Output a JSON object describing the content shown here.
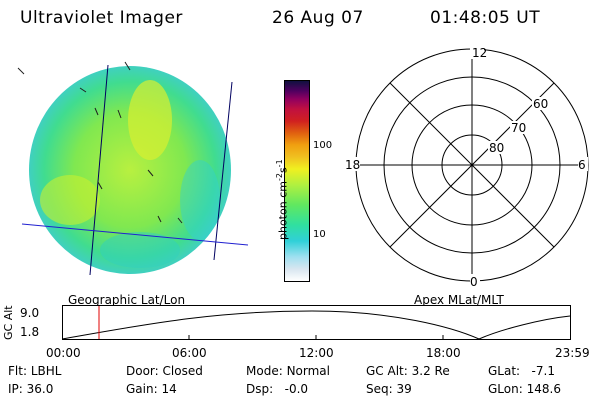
{
  "header": {
    "instrument": "Ultraviolet Imager",
    "date": "26 Aug 07",
    "time": "01:48:05 UT"
  },
  "colorbar": {
    "unit_label": "photon cm",
    "unit_exp1": "-2",
    "unit_mid": "s",
    "unit_exp2": "-1",
    "ticks": [
      "100",
      "10"
    ],
    "colors": [
      "#ffffff",
      "#d8e6f0",
      "#a0e0f0",
      "#30d0d8",
      "#30e0a0",
      "#60e860",
      "#b0f040",
      "#f0f020",
      "#f0c020",
      "#f0a010",
      "#e06010",
      "#d02020",
      "#c01040",
      "#900060",
      "#500060",
      "#101040"
    ]
  },
  "polar_grid": {
    "mlt_labels": {
      "top": "12",
      "right": "6",
      "bottom": "0",
      "left": "18"
    },
    "lat_labels": [
      "60",
      "70",
      "80"
    ]
  },
  "labels": {
    "left_panel": "Geographic Lat/Lon",
    "right_panel": "Apex MLat/MLT"
  },
  "altitude_plot": {
    "ylabel": "GC Alt",
    "yticks": [
      "9.0",
      "1.8"
    ],
    "xticks": [
      "00:00",
      "06:00",
      "12:00",
      "18:00",
      "23:59"
    ],
    "marker_color": "#e00000"
  },
  "info": {
    "flt_label": "Flt:",
    "flt_value": "LBHL",
    "door_label": "Door:",
    "door_value": "Closed",
    "mode_label": "Mode:",
    "mode_value": "Normal",
    "gcalt_label": "GC Alt:",
    "gcalt_value": "3.2 Re",
    "glat_label": "GLat:",
    "glat_value": "-7.1",
    "ip_label": "IP:",
    "ip_value": "36.0",
    "gain_label": "Gain:",
    "gain_value": "14",
    "dsp_label": "Dsp:",
    "dsp_value": "-0.0",
    "seq_label": "Seq:",
    "seq_value": "39",
    "glon_label": "GLon:",
    "glon_value": "148.6"
  }
}
